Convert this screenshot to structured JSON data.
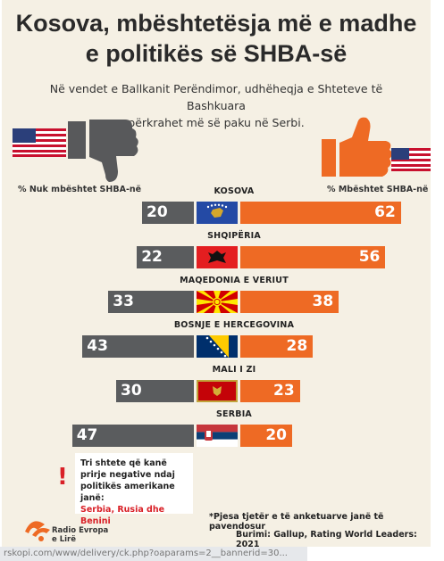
{
  "title_line1": "Kosova, mbështetësja më e madhe",
  "title_line2": "e politikës së SHBA-së",
  "subtitle_line1": "Në vendet e Ballkanit Perëndimor, udhëheqja e Shteteve të Bashkuara",
  "subtitle_line2": "përkrahet më së paku në Serbi.",
  "icons": [
    "us-flag-icon",
    "thumbs-down-icon",
    "thumbs-up-icon",
    "exclamation-icon"
  ],
  "colors": {
    "support": "#ee6a24",
    "no_support": "#5a5c5e",
    "background": "#f5f0e4",
    "highlight": "#d92027"
  },
  "chart_data": {
    "type": "bar",
    "orientation": "horizontal-diverging",
    "left_label": "% Nuk mbështet SHBA-në",
    "right_label": "% Mbështet SHBA-në",
    "categories": [
      "KOSOVA",
      "SHQIPËRIA",
      "MAQEDONIA E VERIUT",
      "BOSNJE E HERCEGOVINA",
      "MALI I ZI",
      "SERBIA"
    ],
    "series": [
      {
        "name": "% Nuk mbështet SHBA-në",
        "values": [
          20,
          22,
          33,
          43,
          30,
          47
        ]
      },
      {
        "name": "% Mbështet SHBA-në",
        "values": [
          62,
          56,
          38,
          28,
          23,
          20
        ]
      }
    ]
  },
  "note": {
    "text": "Tri shtete që kanë prirje negative ndaj politikës amerikane janë:",
    "highlight": "Serbia, Rusia dhe Benini"
  },
  "footnote": "*Pjesa tjetër e të anketuarve janë të pavendosur",
  "source": "Burimi: Gallup, Rating World Leaders: 2021",
  "logo": {
    "line1": "Radio Evropa",
    "line2": "e Lirë"
  },
  "status_bar": "rskopi.com/www/delivery/ck.php?oaparams=2__bannerid=30..."
}
